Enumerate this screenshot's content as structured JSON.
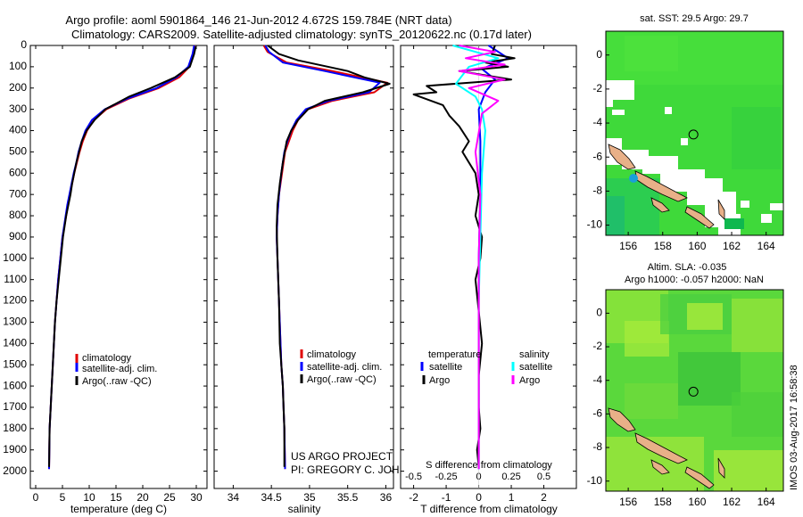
{
  "header": {
    "line1": "Argo profile: aoml 5901864_146 21-Jun-2012 4.672S 159.784E (NRT data)",
    "line2": "Climatology: CARS2009. Satellite-adjusted climatology: synTS_20120622.nc (0.17d later)"
  },
  "map_top": {
    "title": "sat. SST: 29.5 Argo: 29.7"
  },
  "map_bottom": {
    "title1": "Altim. SLA: -0.035",
    "title2": "Argo h1000: -0.057 h2000: NaN"
  },
  "credit": "IMOS 03-Aug-2017 16:58:38",
  "project": {
    "line1": "US ARGO PROJECT",
    "line2": "PI: GREGORY C. JOHNSON"
  },
  "legend": {
    "climatology": "climatology",
    "satellite_adj": "satellite-adj. clim.",
    "argo": "Argo(..raw -QC)",
    "temperature": "temperature",
    "salinity": "salinity",
    "satellite": "satellite",
    "argo_short": "Argo"
  },
  "colors": {
    "clim": "#e00000",
    "sat": "#0000ff",
    "argo": "#000000",
    "cyan": "#00ffff",
    "magenta": "#ff00ff"
  },
  "chart_data": [
    {
      "type": "line",
      "title": "",
      "xlabel": "temperature (deg C)",
      "ylabel": "",
      "xlim": [
        -1,
        32
      ],
      "ylim": [
        2100,
        0
      ],
      "xticks": [
        0,
        5,
        10,
        15,
        20,
        25,
        30
      ],
      "yticks": [
        0,
        100,
        200,
        300,
        400,
        500,
        600,
        700,
        800,
        900,
        1000,
        1100,
        1200,
        1300,
        1400,
        1500,
        1600,
        1700,
        1800,
        1900,
        2000
      ],
      "series": [
        {
          "name": "climatology",
          "x": [
            29.7,
            29.4,
            28.7,
            26.8,
            23.0,
            17.4,
            13.2,
            10.9,
            9.6,
            8.8,
            8.2,
            7.7,
            7.2,
            6.8,
            6.4,
            6.0,
            5.7,
            5.0,
            4.6,
            4.2,
            3.9,
            3.6,
            3.4,
            3.2,
            3.0,
            2.8,
            2.6,
            2.5
          ],
          "y": [
            0,
            40,
            100,
            150,
            200,
            250,
            300,
            350,
            400,
            450,
            500,
            550,
            600,
            650,
            700,
            750,
            800,
            900,
            1000,
            1100,
            1200,
            1300,
            1400,
            1500,
            1600,
            1700,
            1800,
            1990
          ]
        },
        {
          "name": "satellite-adj. clim.",
          "x": [
            29.6,
            29.3,
            28.5,
            26.3,
            22.6,
            17.1,
            12.9,
            10.5,
            9.3,
            8.6,
            8.0,
            7.6,
            7.1,
            6.7,
            6.3,
            5.9,
            5.6,
            5.0,
            4.6,
            4.2,
            3.9,
            3.6,
            3.4,
            3.2,
            3.0,
            2.8,
            2.6,
            2.5
          ],
          "y": [
            0,
            40,
            100,
            150,
            200,
            250,
            300,
            350,
            400,
            450,
            500,
            550,
            600,
            650,
            700,
            750,
            800,
            900,
            1000,
            1100,
            1200,
            1300,
            1400,
            1500,
            1600,
            1700,
            1800,
            1990
          ]
        },
        {
          "name": "Argo(..raw -QC)",
          "x": [
            29.9,
            29.6,
            28.8,
            26.0,
            21.5,
            17.5,
            13.0,
            11.0,
            9.5,
            8.6,
            8.1,
            7.6,
            7.2,
            6.8,
            6.5,
            6.1,
            5.7,
            5.1,
            4.7,
            4.3,
            3.9,
            3.6,
            3.4,
            3.2,
            3.0,
            2.8,
            2.6,
            2.5
          ],
          "y": [
            5,
            40,
            100,
            150,
            200,
            240,
            300,
            350,
            400,
            450,
            500,
            550,
            600,
            650,
            700,
            750,
            800,
            900,
            1000,
            1100,
            1200,
            1300,
            1400,
            1500,
            1600,
            1700,
            1800,
            1980
          ]
        }
      ]
    },
    {
      "type": "line",
      "title": "",
      "xlabel": "salinity",
      "ylabel": "",
      "xlim": [
        33.75,
        36.1
      ],
      "ylim": [
        2100,
        0
      ],
      "xticks": [
        34,
        34.5,
        35,
        35.5,
        36
      ],
      "yticks": [],
      "series": [
        {
          "name": "climatology",
          "x": [
            34.4,
            34.45,
            34.7,
            35.3,
            36.02,
            35.85,
            35.3,
            34.98,
            34.85,
            34.78,
            34.73,
            34.68,
            34.64,
            34.6,
            34.58,
            34.57,
            34.58,
            34.6,
            34.62,
            34.63,
            34.65,
            34.66,
            34.67,
            34.68
          ],
          "y": [
            0,
            30,
            80,
            120,
            175,
            220,
            260,
            300,
            350,
            400,
            450,
            500,
            600,
            700,
            800,
            900,
            1000,
            1200,
            1400,
            1500,
            1600,
            1700,
            1800,
            1990
          ]
        },
        {
          "name": "satellite-adj. clim.",
          "x": [
            34.42,
            34.47,
            34.65,
            35.2,
            35.92,
            35.78,
            35.25,
            34.95,
            34.83,
            34.76,
            34.71,
            34.67,
            34.63,
            34.6,
            34.58,
            34.57,
            34.58,
            34.6,
            34.62,
            34.63,
            34.65,
            34.66,
            34.67,
            34.68
          ],
          "y": [
            0,
            30,
            80,
            120,
            175,
            220,
            260,
            300,
            350,
            400,
            450,
            500,
            600,
            700,
            800,
            900,
            1000,
            1200,
            1400,
            1500,
            1600,
            1700,
            1800,
            1990
          ]
        },
        {
          "name": "Argo(..raw -QC)",
          "x": [
            34.45,
            34.6,
            34.85,
            35.5,
            35.72,
            36.05,
            35.7,
            35.2,
            34.98,
            34.85,
            34.76,
            34.7,
            34.65,
            34.61,
            34.58,
            34.57,
            34.58,
            34.6,
            34.61,
            34.63,
            34.65,
            34.66,
            34.67,
            34.67
          ],
          "y": [
            0,
            40,
            70,
            120,
            150,
            180,
            220,
            260,
            300,
            350,
            400,
            450,
            550,
            650,
            750,
            850,
            1000,
            1200,
            1400,
            1500,
            1600,
            1700,
            1800,
            1980
          ]
        }
      ]
    },
    {
      "type": "line",
      "title": "",
      "xlabel": "T difference from climatology",
      "xlabel_top": "S difference from climatology",
      "ylabel": "",
      "xlim": [
        -2.4,
        3.0
      ],
      "ylim": [
        2100,
        0
      ],
      "xticks": [
        -2,
        -1,
        0,
        1,
        2
      ],
      "xticks_s": [
        "-0.5",
        "-0.25",
        "0",
        "0.25",
        "0.5"
      ],
      "xticks_s_pos": [
        -2,
        -1,
        0,
        1,
        2
      ],
      "yticks": [],
      "series": [
        {
          "name": "temperature satellite",
          "x": [
            0.3,
            0.9,
            0.1,
            0.5,
            0.2,
            0.0,
            0.05,
            0.05,
            0.0,
            0.0,
            0.0,
            0.0,
            0.0
          ],
          "y": [
            0,
            60,
            110,
            160,
            220,
            300,
            450,
            700,
            1000,
            1300,
            1600,
            1800,
            1990
          ]
        },
        {
          "name": "temperature Argo",
          "x": [
            0.5,
            0.4,
            1.1,
            0.2,
            0.9,
            -0.6,
            1.0,
            -1.6,
            -1.3,
            -2.0,
            -1.1,
            -0.9,
            -0.6,
            -0.3,
            -0.5,
            -0.1,
            0.0,
            -0.1,
            0.1,
            0.05,
            -0.1,
            0.0,
            0.1,
            0.0,
            0.0,
            0.05,
            -0.05,
            0.0
          ],
          "y": [
            0,
            40,
            60,
            80,
            100,
            120,
            160,
            190,
            220,
            230,
            280,
            330,
            380,
            450,
            500,
            600,
            700,
            800,
            900,
            1000,
            1100,
            1250,
            1400,
            1550,
            1700,
            1800,
            1900,
            1980
          ]
        },
        {
          "name": "salinity satellite",
          "x": [
            -0.8,
            0.6,
            -0.3,
            -0.7,
            -0.1,
            0.1,
            0.2,
            0.1,
            0.05,
            0.0,
            0.0,
            0.0,
            0.0
          ],
          "y": [
            0,
            60,
            100,
            180,
            240,
            300,
            400,
            600,
            900,
            1200,
            1500,
            1800,
            1990
          ]
        },
        {
          "name": "salinity Argo",
          "x": [
            -0.6,
            0.5,
            -0.4,
            0.8,
            -0.6,
            0.8,
            -0.3,
            0.6,
            0.1,
            -0.1,
            0.05,
            0.0,
            0.0,
            0.0,
            0.0
          ],
          "y": [
            0,
            30,
            60,
            90,
            120,
            160,
            200,
            260,
            320,
            500,
            700,
            1000,
            1400,
            1800,
            1990
          ]
        }
      ]
    }
  ],
  "map_axes": {
    "x_ticks": [
      156,
      158,
      160,
      162,
      164
    ],
    "y_ticks": [
      0,
      -2,
      -4,
      -6,
      -8,
      -10
    ],
    "xlim": [
      154.7,
      165.0
    ],
    "ylim": [
      -10.6,
      1.4
    ],
    "float_lon": 159.784,
    "float_lat": -4.672
  }
}
